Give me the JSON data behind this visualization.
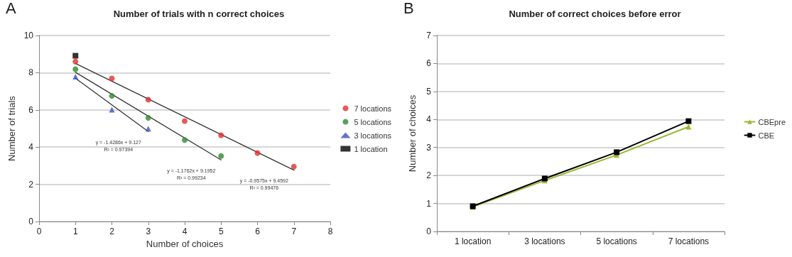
{
  "chart_data": [
    {
      "type": "scatter",
      "title": "Number of trials with n correct choices",
      "xlabel": "Number of choices",
      "ylabel": "Number of trials",
      "xlim": [
        0,
        8
      ],
      "xticks": [
        0,
        1,
        2,
        3,
        4,
        5,
        6,
        7,
        8
      ],
      "ylim": [
        0,
        10
      ],
      "yticks": [
        0,
        2,
        4,
        6,
        8,
        10
      ],
      "grid": "y",
      "legend": "right",
      "annotations": [
        "A",
        "y = -1.4286x + 9.127\nR² = 0.97394",
        "y = -1.1762x + 9.1952\nR² = 0.99234",
        "y = -0.9575x + 9.4592\nR² = 0.99476"
      ],
      "series": [
        {
          "name": "7 locations",
          "color": "#e03030",
          "marker": "circle",
          "x": [
            1,
            2,
            3,
            4,
            5,
            6,
            7
          ],
          "values": [
            8.6,
            7.69,
            6.55,
            5.4,
            4.64,
            3.68,
            2.95
          ]
        },
        {
          "name": "5 locations",
          "color": "#2e8b2e",
          "marker": "circle",
          "x": [
            1,
            2,
            3,
            4,
            5
          ],
          "values": [
            8.19,
            6.75,
            5.57,
            4.38,
            3.52
          ]
        },
        {
          "name": "3 locations",
          "color": "#3c4fc0",
          "marker": "triangle",
          "x": [
            1,
            2,
            3
          ],
          "values": [
            7.79,
            6.01,
            4.99
          ]
        },
        {
          "name": "1 location",
          "color": "#000000",
          "marker": "square",
          "x": [
            1
          ],
          "values": [
            8.91
          ]
        },
        {
          "type": "line",
          "color": "#333333",
          "marker": "none",
          "x": [
            1,
            3
          ],
          "values": [
            7.7,
            4.84
          ]
        },
        {
          "type": "line",
          "color": "#333333",
          "marker": "none",
          "x": [
            1,
            5
          ],
          "values": [
            8.02,
            3.31
          ]
        },
        {
          "type": "line",
          "color": "#333333",
          "marker": "none",
          "x": [
            1,
            7
          ],
          "values": [
            8.5,
            2.76
          ]
        }
      ]
    },
    {
      "type": "line",
      "title": "Number of correct choices before error",
      "ylabel": "Number of choices",
      "categories": [
        "1 location",
        "3 locations",
        "5 locations",
        "7 locations"
      ],
      "ylim": [
        0,
        7
      ],
      "yticks": [
        0,
        1,
        2,
        3,
        4,
        5,
        6,
        7
      ],
      "grid": "y",
      "legend": "right",
      "annotations": [
        "B"
      ],
      "series": [
        {
          "name": "CBEpre",
          "color": "#9ab832",
          "marker": "triangle",
          "values": [
            0.88,
            1.82,
            2.73,
            3.74
          ]
        },
        {
          "name": "CBE",
          "color": "#000000",
          "marker": "square",
          "values": [
            0.9,
            1.89,
            2.83,
            3.94
          ]
        }
      ]
    }
  ]
}
